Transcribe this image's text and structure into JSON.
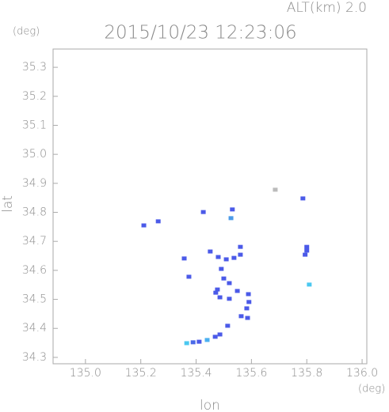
{
  "chart_data": {
    "type": "scatter",
    "title": "2015/10/23 12:23:06",
    "subtitle": "ALT(km) 2.0",
    "x_label": "lon",
    "y_label": "lat",
    "x_unit": "(deg)",
    "y_unit": "(deg)",
    "xlim": [
      134.883,
      136.017
    ],
    "ylim": [
      34.278,
      35.363
    ],
    "xticks": [
      {
        "value": 135.0,
        "label": "135.0"
      },
      135.2,
      135.4,
      135.6,
      135.8,
      {
        "value": 136.0,
        "label": "136.0"
      }
    ],
    "yticks": [
      34.3,
      34.4,
      34.5,
      34.6,
      34.7,
      34.8,
      34.9,
      {
        "value": 35.0,
        "label": "35.0"
      },
      35.1,
      35.2,
      35.3
    ],
    "x": [
      135.211,
      135.263,
      135.426,
      135.531,
      135.526,
      135.686,
      135.786,
      135.357,
      135.374,
      135.56,
      135.56,
      135.451,
      135.48,
      135.509,
      135.537,
      135.491,
      135.5,
      135.52,
      135.477,
      135.486,
      135.52,
      135.549,
      135.471,
      135.591,
      135.589,
      135.583,
      135.563,
      135.586,
      135.514,
      135.486,
      135.469,
      135.411,
      135.389,
      135.366,
      135.44,
      135.8,
      135.8,
      135.794,
      135.809
    ],
    "y": [
      34.755,
      34.769,
      34.801,
      34.81,
      34.78,
      34.878,
      34.848,
      34.641,
      34.578,
      34.681,
      34.654,
      34.665,
      34.646,
      34.638,
      34.643,
      34.605,
      34.572,
      34.556,
      34.534,
      34.507,
      34.502,
      34.529,
      34.523,
      34.491,
      34.518,
      34.469,
      34.442,
      34.436,
      34.409,
      34.379,
      34.371,
      34.354,
      34.352,
      34.349,
      34.36,
      34.668,
      34.681,
      34.654,
      34.551
    ],
    "colors": [
      "#4b5ae8",
      "#4b5ae8",
      "#4b5ae8",
      "#4b5ae8",
      "#4b9ae8",
      "#bbbbbb",
      "#4b5ae8",
      "#4b5ae8",
      "#4b5ae8",
      "#4b5ae8",
      "#4b5ae8",
      "#4b5ae8",
      "#4b5ae8",
      "#4b5ae8",
      "#4b5ae8",
      "#4b5ae8",
      "#4b5ae8",
      "#4b5ae8",
      "#4b5ae8",
      "#4b5ae8",
      "#4b5ae8",
      "#4b5ae8",
      "#4b5ae8",
      "#4b5ae8",
      "#4b5ae8",
      "#4b5ae8",
      "#4b5ae8",
      "#4b5ae8",
      "#4b5ae8",
      "#4b5ae8",
      "#4b5ae8",
      "#4b5ae8",
      "#4b6ae8",
      "#4bc8f0",
      "#4bb0f0",
      "#4b5ae8",
      "#4b5ae8",
      "#4b5ae8",
      "#4bc8f0"
    ]
  }
}
